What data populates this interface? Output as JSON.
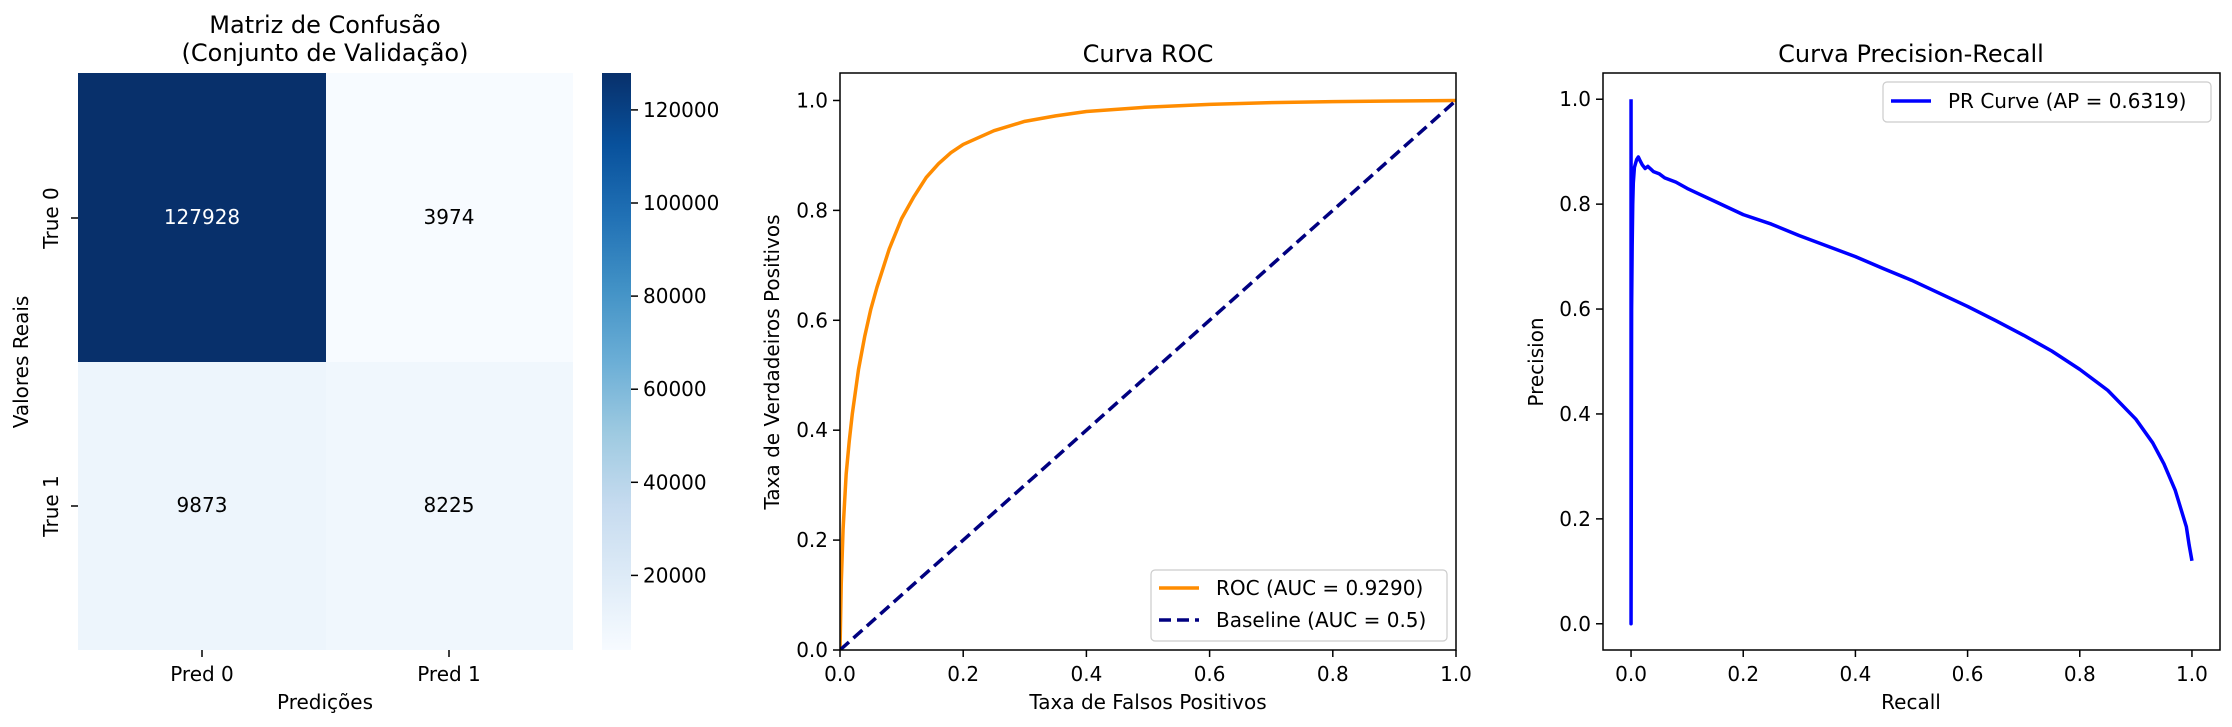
{
  "chart_data": [
    {
      "type": "heatmap",
      "title_line1": "Matriz de Confusão",
      "title_line2": "(Conjunto de Validação)",
      "xlabel": "Predições",
      "ylabel": "Valores Reais",
      "x_categories": [
        "Pred 0",
        "Pred 1"
      ],
      "y_categories": [
        "True 0",
        "True 1"
      ],
      "matrix": [
        [
          127928,
          3974
        ],
        [
          9873,
          8225
        ]
      ],
      "cell_labels": [
        [
          "127928",
          "3974"
        ],
        [
          "9873",
          "8225"
        ]
      ],
      "colormap": "Blues",
      "colorbar_range": [
        3974,
        127928
      ],
      "colorbar_ticks": [
        20000,
        40000,
        60000,
        80000,
        100000,
        120000
      ],
      "colorbar_tick_labels": [
        "20000",
        "40000",
        "60000",
        "80000",
        "100000",
        "120000"
      ]
    },
    {
      "type": "line",
      "title": "Curva ROC",
      "xlabel": "Taxa de Falsos Positivos",
      "ylabel": "Taxa de Verdadeiros Positivos",
      "xlim": [
        0.0,
        1.0
      ],
      "ylim": [
        0.0,
        1.05
      ],
      "xticks": [
        "0.0",
        "0.2",
        "0.4",
        "0.6",
        "0.8",
        "1.0"
      ],
      "yticks": [
        "0.0",
        "0.2",
        "0.4",
        "0.6",
        "0.8",
        "1.0"
      ],
      "legend_position": "lower-right",
      "series": [
        {
          "name": "ROC (AUC = 0.9290)",
          "color": "#ff8c00",
          "style": "solid",
          "x": [
            0.0,
            0.002,
            0.005,
            0.01,
            0.015,
            0.02,
            0.03,
            0.04,
            0.05,
            0.06,
            0.08,
            0.1,
            0.12,
            0.14,
            0.16,
            0.18,
            0.2,
            0.25,
            0.3,
            0.35,
            0.4,
            0.5,
            0.6,
            0.7,
            0.8,
            0.9,
            1.0
          ],
          "y": [
            0.0,
            0.12,
            0.22,
            0.32,
            0.38,
            0.43,
            0.51,
            0.57,
            0.62,
            0.66,
            0.73,
            0.785,
            0.825,
            0.86,
            0.885,
            0.905,
            0.92,
            0.945,
            0.962,
            0.972,
            0.98,
            0.988,
            0.993,
            0.996,
            0.998,
            0.999,
            1.0
          ]
        },
        {
          "name": "Baseline (AUC = 0.5)",
          "color": "#000080",
          "style": "dashed",
          "x": [
            0.0,
            1.0
          ],
          "y": [
            0.0,
            1.0
          ]
        }
      ]
    },
    {
      "type": "line",
      "title": "Curva Precision-Recall",
      "xlabel": "Recall",
      "ylabel": "Precision",
      "xlim": [
        -0.05,
        1.05
      ],
      "ylim": [
        -0.05,
        1.05
      ],
      "xticks": [
        "0.0",
        "0.2",
        "0.4",
        "0.6",
        "0.8",
        "1.0"
      ],
      "yticks": [
        "0.0",
        "0.2",
        "0.4",
        "0.6",
        "0.8",
        "1.0"
      ],
      "legend_position": "upper-right",
      "series": [
        {
          "name": "PR Curve (AP = 0.6319)",
          "color": "#0000ff",
          "style": "solid",
          "x": [
            0.0,
            0.0,
            0.001,
            0.002,
            0.003,
            0.004,
            0.006,
            0.01,
            0.013,
            0.016,
            0.02,
            0.025,
            0.03,
            0.04,
            0.05,
            0.06,
            0.08,
            0.1,
            0.12,
            0.15,
            0.2,
            0.25,
            0.3,
            0.35,
            0.4,
            0.45,
            0.5,
            0.55,
            0.6,
            0.65,
            0.7,
            0.75,
            0.8,
            0.85,
            0.9,
            0.93,
            0.95,
            0.97,
            0.98,
            0.99,
            0.995,
            1.0
          ],
          "y": [
            1.0,
            0.0,
            0.6,
            0.72,
            0.8,
            0.84,
            0.87,
            0.885,
            0.89,
            0.883,
            0.875,
            0.868,
            0.872,
            0.862,
            0.858,
            0.85,
            0.842,
            0.83,
            0.82,
            0.805,
            0.78,
            0.762,
            0.74,
            0.72,
            0.7,
            0.677,
            0.655,
            0.63,
            0.605,
            0.578,
            0.55,
            0.52,
            0.485,
            0.445,
            0.39,
            0.345,
            0.305,
            0.255,
            0.22,
            0.185,
            0.15,
            0.12
          ]
        }
      ]
    }
  ]
}
